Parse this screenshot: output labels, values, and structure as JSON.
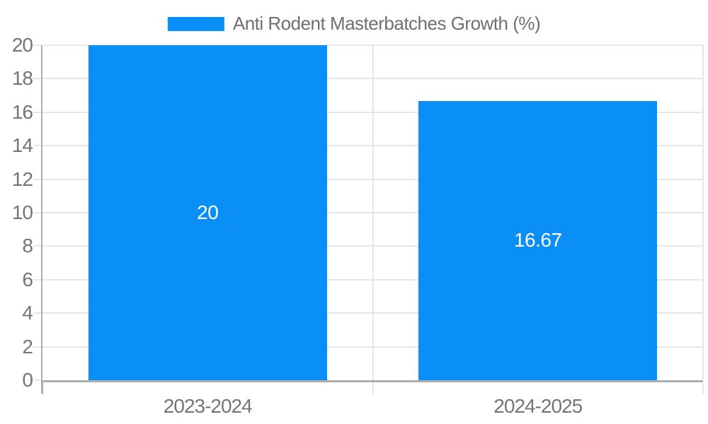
{
  "chart_data": {
    "type": "bar",
    "title": "Anti Rodent Masterbatches Growth (%)",
    "categories": [
      "2023-2024",
      "2024-2025"
    ],
    "values": [
      20,
      16.67
    ],
    "value_labels": [
      "20",
      "16.67"
    ],
    "ylim": [
      0,
      20
    ],
    "ytick_step": 2,
    "ytick_labels": [
      "0",
      "2",
      "4",
      "6",
      "8",
      "10",
      "12",
      "14",
      "16",
      "18",
      "20"
    ],
    "grid": true,
    "legend_position": "top-center",
    "colors": {
      "bar": "#0a8ff6",
      "bar_value_text": "#ffffff",
      "gridline": "#e6e6e6",
      "axis_line": "#aeaeae",
      "tick_text": "#757575",
      "legend_text": "#6f6f6f",
      "background": "#ffffff"
    }
  }
}
